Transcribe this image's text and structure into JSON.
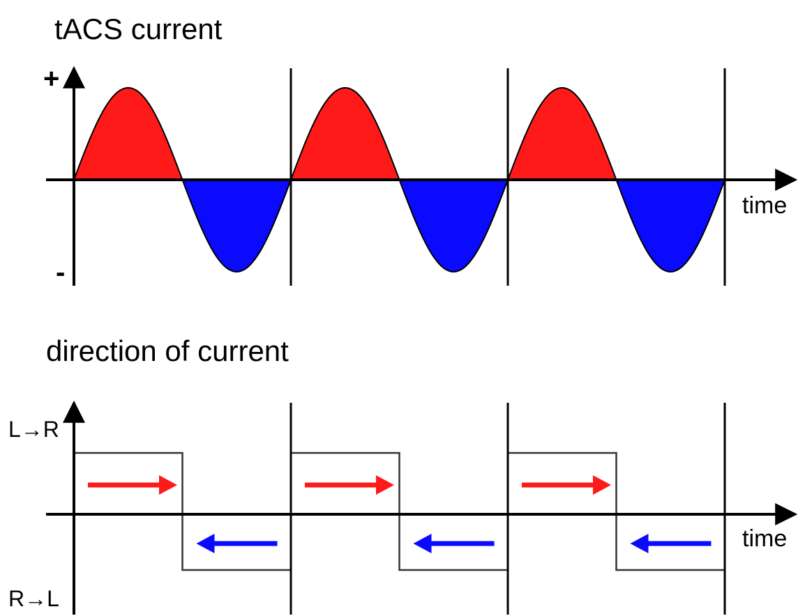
{
  "top_panel": {
    "title": "tACS current",
    "y_plus_label": "+",
    "y_minus_label": "-",
    "x_label": "time",
    "cycles": 3,
    "positive_color": "#ff1a1a",
    "negative_color": "#0a0aff"
  },
  "bottom_panel": {
    "title": "direction of current",
    "y_top_label": "L→R",
    "y_bottom_label": "R→L",
    "x_label": "time",
    "cycles": 3,
    "arrow_right_color": "#ff1a1a",
    "arrow_left_color": "#0a0aff"
  }
}
